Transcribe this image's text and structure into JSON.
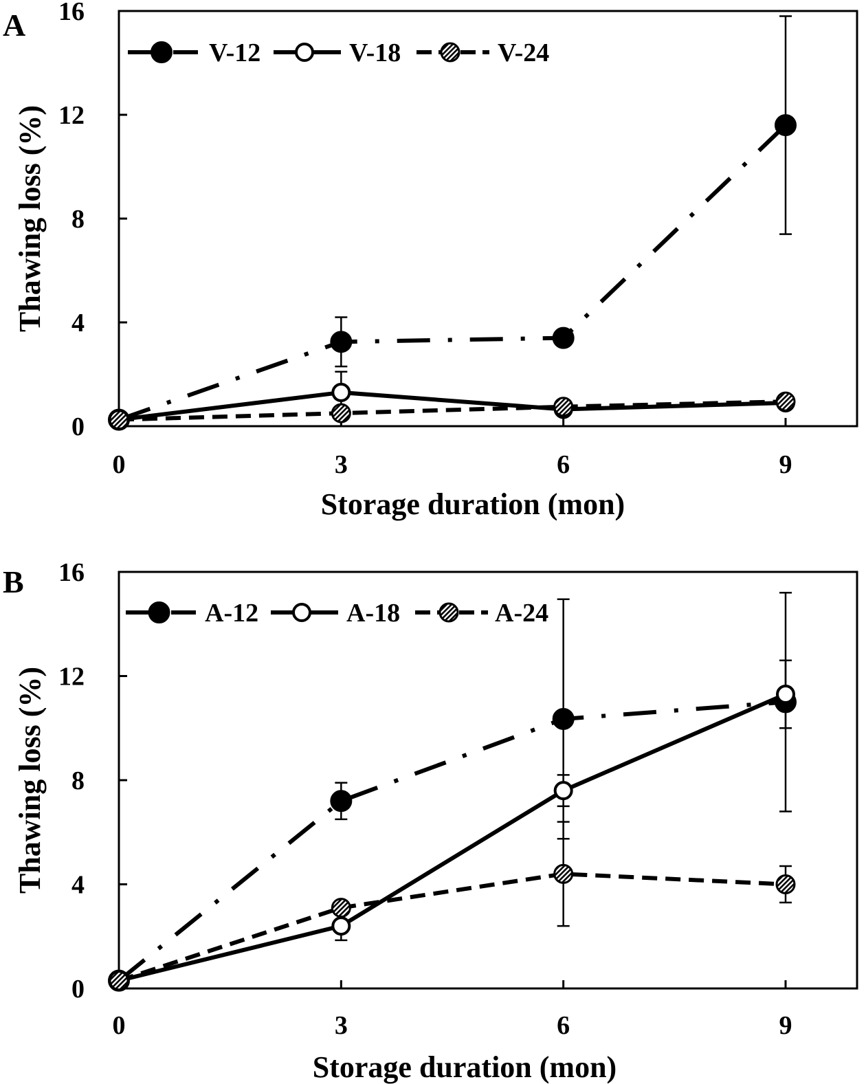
{
  "colors": {
    "ink": "#000000",
    "background": "#ffffff"
  },
  "chart_data": [
    {
      "panel": "A",
      "type": "line",
      "xlabel": "Storage duration  (mon)",
      "ylabel": "Thawing loss (%)",
      "x": [
        0,
        3,
        6,
        9
      ],
      "xticks": [
        "0",
        "3",
        "6",
        "9"
      ],
      "yticks": [
        "0",
        "4",
        "8",
        "12",
        "16"
      ],
      "xlim": [
        0,
        9
      ],
      "ylim": [
        0,
        16
      ],
      "legend_position": "top-left",
      "grid": false,
      "series": [
        {
          "name": "V-12",
          "style": "dash-dot",
          "marker": "filled-circle",
          "values": [
            0.25,
            3.25,
            3.4,
            11.6
          ],
          "err": [
            0,
            0.95,
            0,
            4.2
          ]
        },
        {
          "name": "V-18",
          "style": "solid",
          "marker": "open-circle",
          "values": [
            0.25,
            1.3,
            0.65,
            0.9
          ],
          "err": [
            0,
            0.8,
            0,
            0
          ]
        },
        {
          "name": "V-24",
          "style": "dashed",
          "marker": "hatched-circle",
          "values": [
            0.25,
            0.5,
            0.75,
            0.95
          ],
          "err": [
            0,
            0,
            0,
            0
          ]
        }
      ]
    },
    {
      "panel": "B",
      "type": "line",
      "xlabel": "Storage duration (mon)",
      "ylabel": "Thawing loss (%)",
      "x": [
        0,
        3,
        6,
        9
      ],
      "xticks": [
        "0",
        "3",
        "6",
        "9"
      ],
      "yticks": [
        "0",
        "4",
        "8",
        "12",
        "16"
      ],
      "xlim": [
        0,
        9
      ],
      "ylim": [
        0,
        16
      ],
      "legend_position": "top-left",
      "grid": false,
      "series": [
        {
          "name": "A-12",
          "style": "dash-dot",
          "marker": "filled-circle",
          "values": [
            0.3,
            7.2,
            10.35,
            11.0
          ],
          "err": [
            0,
            0.7,
            4.6,
            4.2
          ]
        },
        {
          "name": "A-18",
          "style": "solid",
          "marker": "open-circle",
          "values": [
            0.3,
            2.4,
            7.6,
            11.3
          ],
          "err": [
            0,
            0.55,
            0.6,
            1.3
          ]
        },
        {
          "name": "A-24",
          "style": "dashed",
          "marker": "hatched-circle",
          "values": [
            0.3,
            3.1,
            4.4,
            4.0
          ],
          "err": [
            0,
            0,
            2.0,
            0.7
          ]
        }
      ]
    }
  ]
}
